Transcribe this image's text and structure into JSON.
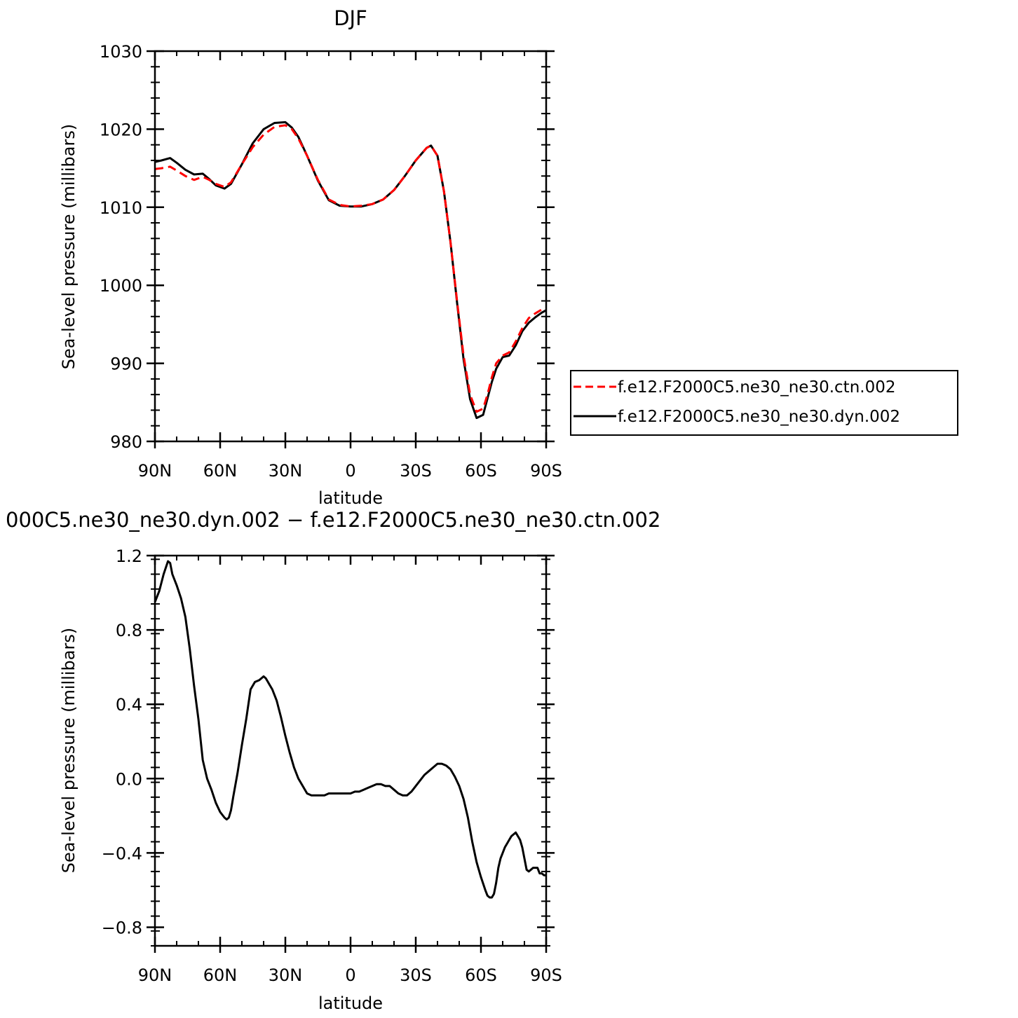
{
  "chart_data": [
    {
      "type": "line",
      "title": "DJF",
      "xlabel": "latitude",
      "ylabel": "Sea-level pressure (millibars)",
      "xlim": [
        90,
        -90
      ],
      "ylim": [
        980,
        1030
      ],
      "x_ticks": [
        {
          "value": 90,
          "label": "90N"
        },
        {
          "value": 60,
          "label": "60N"
        },
        {
          "value": 30,
          "label": "30N"
        },
        {
          "value": 0,
          "label": "0"
        },
        {
          "value": -30,
          "label": "30S"
        },
        {
          "value": -60,
          "label": "60S"
        },
        {
          "value": -90,
          "label": "90S"
        }
      ],
      "y_ticks": [
        {
          "value": 980,
          "label": "980"
        },
        {
          "value": 990,
          "label": "990"
        },
        {
          "value": 1000,
          "label": "1000"
        },
        {
          "value": 1010,
          "label": "1010"
        },
        {
          "value": 1020,
          "label": "1020"
        },
        {
          "value": 1030,
          "label": "1030"
        }
      ],
      "legend_position": "right",
      "series": [
        {
          "name": "f.e12.F2000C5.ne30_ne30.ctn.002",
          "color": "#ff0000",
          "dash": "dashed",
          "x": [
            90,
            87,
            83,
            80,
            76,
            72,
            68,
            65,
            62,
            58,
            55,
            50,
            45,
            40,
            35,
            30,
            27,
            24,
            20,
            15,
            10,
            5,
            0,
            -5,
            -10,
            -15,
            -20,
            -25,
            -30,
            -35,
            -37,
            -40,
            -43,
            -46,
            -49,
            -52,
            -55,
            -58,
            -61,
            -63,
            -65,
            -67,
            -70,
            -73,
            -76,
            -79,
            -82,
            -85,
            -88,
            -90
          ],
          "y": [
            1014.9,
            1015.0,
            1015.2,
            1014.7,
            1014.0,
            1013.5,
            1013.9,
            1013.5,
            1013.0,
            1012.6,
            1013.2,
            1015.5,
            1017.7,
            1019.3,
            1020.3,
            1020.5,
            1020.0,
            1018.8,
            1016.6,
            1013.5,
            1011.0,
            1010.3,
            1010.1,
            1010.2,
            1010.4,
            1011.0,
            1012.2,
            1014.0,
            1016.0,
            1017.6,
            1017.9,
            1016.6,
            1012.0,
            1005.5,
            998.0,
            991.0,
            986.0,
            983.8,
            984.2,
            986.0,
            988.2,
            990.0,
            991.0,
            991.4,
            992.8,
            994.5,
            995.8,
            996.4,
            996.9,
            997.1
          ]
        },
        {
          "name": "f.e12.F2000C5.ne30_ne30.dyn.002",
          "color": "#000000",
          "dash": "solid",
          "x": [
            90,
            87,
            83,
            80,
            76,
            72,
            68,
            65,
            62,
            58,
            55,
            50,
            45,
            40,
            35,
            30,
            27,
            24,
            20,
            15,
            10,
            5,
            0,
            -5,
            -10,
            -15,
            -20,
            -25,
            -30,
            -35,
            -37,
            -40,
            -43,
            -46,
            -49,
            -52,
            -55,
            -58,
            -61,
            -63,
            -65,
            -67,
            -70,
            -73,
            -76,
            -79,
            -82,
            -85,
            -88,
            -90
          ],
          "y": [
            1015.8,
            1016.0,
            1016.3,
            1015.7,
            1014.8,
            1014.2,
            1014.3,
            1013.6,
            1012.8,
            1012.4,
            1013.0,
            1015.5,
            1018.2,
            1020.0,
            1020.8,
            1020.9,
            1020.2,
            1019.0,
            1016.6,
            1013.4,
            1010.9,
            1010.2,
            1010.1,
            1010.1,
            1010.4,
            1011.0,
            1012.2,
            1014.0,
            1016.0,
            1017.6,
            1017.9,
            1016.6,
            1012.0,
            1005.5,
            997.8,
            990.5,
            985.4,
            983.0,
            983.4,
            985.5,
            987.6,
            989.3,
            990.8,
            991.0,
            992.3,
            994.1,
            995.2,
            995.9,
            996.5,
            996.8
          ]
        }
      ]
    },
    {
      "type": "line",
      "title": "000C5.ne30_ne30.dyn.002 − f.e12.F2000C5.ne30_ne30.ctn.002",
      "xlabel": "latitude",
      "ylabel": "Sea-level pressure (millibars)",
      "xlim": [
        90,
        -90
      ],
      "ylim": [
        -0.9,
        1.2
      ],
      "x_ticks": [
        {
          "value": 90,
          "label": "90N"
        },
        {
          "value": 60,
          "label": "60N"
        },
        {
          "value": 30,
          "label": "30N"
        },
        {
          "value": 0,
          "label": "0"
        },
        {
          "value": -30,
          "label": "30S"
        },
        {
          "value": -60,
          "label": "60S"
        },
        {
          "value": -90,
          "label": "90S"
        }
      ],
      "y_ticks": [
        {
          "value": -0.8,
          "label": "−0.8"
        },
        {
          "value": -0.4,
          "label": "−0.4"
        },
        {
          "value": 0.0,
          "label": "0.0"
        },
        {
          "value": 0.4,
          "label": "0.4"
        },
        {
          "value": 0.8,
          "label": "0.8"
        },
        {
          "value": 1.2,
          "label": "1.2"
        }
      ],
      "series": [
        {
          "color": "#000000",
          "dash": "solid",
          "x": [
            90,
            88,
            86,
            84,
            83,
            82,
            80,
            78,
            76,
            74,
            72,
            70,
            68,
            66,
            64,
            62,
            60,
            58,
            57,
            56,
            55,
            54,
            52,
            50,
            48,
            46,
            44,
            42,
            41,
            40,
            39,
            38,
            37,
            36,
            35,
            34,
            32,
            30,
            28,
            26,
            24,
            22,
            20,
            18,
            16,
            14,
            12,
            10,
            8,
            6,
            4,
            2,
            0,
            -2,
            -4,
            -6,
            -8,
            -10,
            -12,
            -14,
            -16,
            -18,
            -20,
            -22,
            -24,
            -26,
            -28,
            -30,
            -32,
            -34,
            -36,
            -38,
            -40,
            -42,
            -44,
            -46,
            -48,
            -50,
            -52,
            -54,
            -56,
            -58,
            -60,
            -62,
            -63,
            -64,
            -65,
            -66,
            -67,
            -68,
            -69,
            -70,
            -71,
            -72,
            -73,
            -74,
            -75,
            -76,
            -77,
            -78,
            -79,
            -80,
            -81,
            -82,
            -83,
            -84,
            -85,
            -86,
            -87,
            -88,
            -89,
            -90
          ],
          "y": [
            0.95,
            1.01,
            1.1,
            1.17,
            1.16,
            1.1,
            1.04,
            0.97,
            0.87,
            0.7,
            0.5,
            0.32,
            0.1,
            0.0,
            -0.06,
            -0.13,
            -0.18,
            -0.21,
            -0.22,
            -0.21,
            -0.17,
            -0.1,
            0.03,
            0.18,
            0.32,
            0.48,
            0.52,
            0.53,
            0.54,
            0.55,
            0.54,
            0.52,
            0.5,
            0.48,
            0.45,
            0.42,
            0.33,
            0.23,
            0.14,
            0.06,
            0.0,
            -0.04,
            -0.08,
            -0.09,
            -0.09,
            -0.09,
            -0.09,
            -0.08,
            -0.08,
            -0.08,
            -0.08,
            -0.08,
            -0.08,
            -0.07,
            -0.07,
            -0.06,
            -0.05,
            -0.04,
            -0.03,
            -0.03,
            -0.04,
            -0.04,
            -0.06,
            -0.08,
            -0.09,
            -0.09,
            -0.07,
            -0.04,
            -0.01,
            0.02,
            0.04,
            0.06,
            0.08,
            0.08,
            0.07,
            0.05,
            0.01,
            -0.04,
            -0.11,
            -0.21,
            -0.34,
            -0.45,
            -0.53,
            -0.6,
            -0.63,
            -0.64,
            -0.64,
            -0.62,
            -0.56,
            -0.48,
            -0.43,
            -0.4,
            -0.37,
            -0.35,
            -0.33,
            -0.31,
            -0.3,
            -0.29,
            -0.31,
            -0.33,
            -0.37,
            -0.43,
            -0.49,
            -0.5,
            -0.49,
            -0.48,
            -0.48,
            -0.48,
            -0.51,
            -0.51,
            -0.52,
            -0.52
          ]
        }
      ]
    }
  ]
}
